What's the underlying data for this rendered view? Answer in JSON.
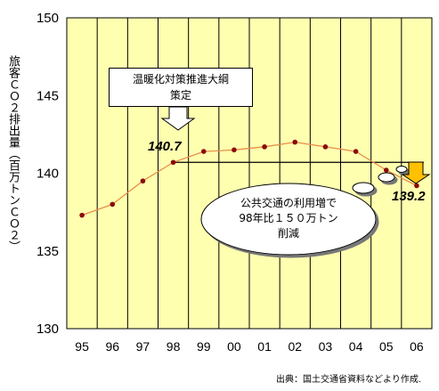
{
  "chart_data": {
    "type": "line",
    "title": "",
    "xlabel": "",
    "ylabel": "旅客ＣＯ２排出量（百万トンＣＯ２）",
    "categories": [
      "95",
      "96",
      "97",
      "98",
      "99",
      "00",
      "01",
      "02",
      "03",
      "04",
      "05",
      "06"
    ],
    "series": [
      {
        "values": [
          137.3,
          138.0,
          139.5,
          140.7,
          141.4,
          141.5,
          141.7,
          142.0,
          141.7,
          141.4,
          140.2,
          139.2
        ]
      }
    ],
    "ylim": [
      130,
      150
    ],
    "yticks": [
      "130",
      "135",
      "140",
      "145",
      "150"
    ],
    "grid": "vertical",
    "line_color": "#e8904c",
    "marker_color": "#8b0a0a",
    "background_color": "#ffffb0",
    "reference_value": 140.7,
    "annotations": {
      "callout_policy": "温暖化対策推進大綱\n策定",
      "start_value_label": "140.7",
      "end_value_label": "139.2",
      "cloud_text": "公共交通の利用増で\n98年比１５０万トン\n削減"
    }
  },
  "source": "出典：国土交通省資料などより作成."
}
